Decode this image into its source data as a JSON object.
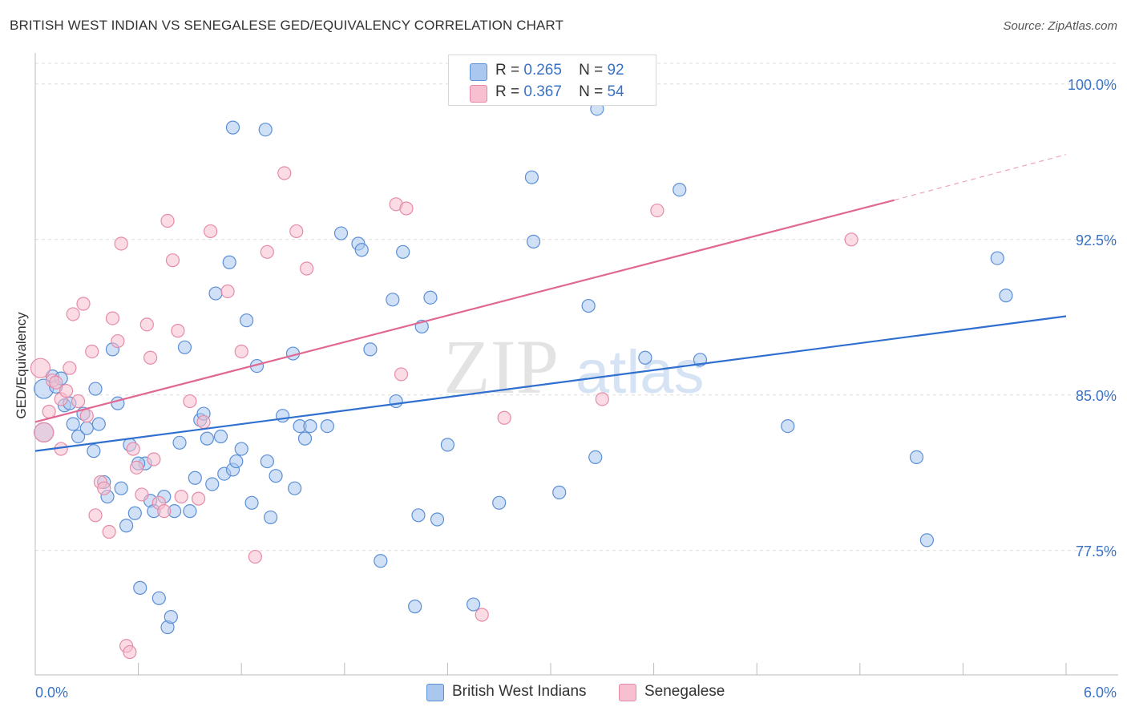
{
  "title": "BRITISH WEST INDIAN VS SENEGALESE GED/EQUIVALENCY CORRELATION CHART",
  "source": "Source: ZipAtlas.com",
  "watermark": {
    "zip": "ZIP",
    "atlas": "atlas"
  },
  "legend": {
    "rows": [
      {
        "r_label": "R =",
        "r_value": "0.265",
        "n_label": "N =",
        "n_value": "92"
      },
      {
        "r_label": "R =",
        "r_value": "0.367",
        "n_label": "N =",
        "n_value": "54"
      }
    ]
  },
  "bottom_legend": [
    "British West Indians",
    "Senegalese"
  ],
  "colors": {
    "blue_fill": "#a9c7ef",
    "blue_stroke": "#5b8fd6",
    "blue_line": "#2e6fd0",
    "pink_fill": "#f7bfd0",
    "pink_stroke": "#e58ba8",
    "pink_line": "#e06892",
    "axis_label": "#3a72c6",
    "grid": "#dddddd"
  },
  "chart_data": {
    "type": "scatter",
    "title": "BRITISH WEST INDIAN VS SENEGALESE GED/EQUIVALENCY CORRELATION CHART",
    "xlabel": "",
    "ylabel": "GED/Equivalency",
    "xlim": [
      0,
      6
    ],
    "ylim": [
      71.5,
      101.5
    ],
    "x_tick_labels": [
      "0.0%",
      "6.0%"
    ],
    "y_ticks": [
      77.5,
      85.0,
      92.5,
      100.0
    ],
    "y_tick_labels": [
      "77.5%",
      "85.0%",
      "92.5%",
      "100.0%"
    ],
    "grid": "horizontal dashed",
    "legend_position": "top-center",
    "series": [
      {
        "name": "British West Indians",
        "R": 0.265,
        "N": 92,
        "trend": {
          "x": [
            0,
            6
          ],
          "y": [
            82.3,
            88.8
          ]
        },
        "points": [
          [
            0.05,
            85.3
          ],
          [
            0.05,
            83.2
          ],
          [
            0.1,
            85.9
          ],
          [
            0.12,
            85.4
          ],
          [
            0.15,
            85.8
          ],
          [
            0.17,
            84.5
          ],
          [
            0.2,
            84.6
          ],
          [
            0.22,
            83.6
          ],
          [
            0.25,
            83.0
          ],
          [
            0.28,
            84.1
          ],
          [
            0.3,
            83.4
          ],
          [
            0.34,
            82.3
          ],
          [
            0.37,
            83.6
          ],
          [
            0.4,
            80.8
          ],
          [
            0.42,
            80.1
          ],
          [
            0.45,
            87.2
          ],
          [
            0.48,
            84.6
          ],
          [
            0.5,
            80.5
          ],
          [
            0.53,
            78.7
          ],
          [
            0.55,
            82.6
          ],
          [
            0.58,
            79.3
          ],
          [
            0.61,
            75.7
          ],
          [
            0.64,
            81.7
          ],
          [
            0.67,
            79.9
          ],
          [
            0.69,
            79.4
          ],
          [
            0.72,
            75.2
          ],
          [
            0.75,
            80.1
          ],
          [
            0.77,
            73.8
          ],
          [
            0.79,
            74.3
          ],
          [
            0.81,
            79.4
          ],
          [
            0.84,
            82.7
          ],
          [
            0.87,
            87.3
          ],
          [
            0.9,
            79.4
          ],
          [
            0.93,
            81.0
          ],
          [
            0.96,
            83.8
          ],
          [
            0.98,
            84.1
          ],
          [
            1.0,
            82.9
          ],
          [
            1.03,
            80.7
          ],
          [
            1.05,
            89.9
          ],
          [
            1.08,
            83.0
          ],
          [
            1.1,
            81.2
          ],
          [
            1.13,
            91.4
          ],
          [
            1.15,
            81.4
          ],
          [
            1.17,
            81.8
          ],
          [
            1.2,
            82.4
          ],
          [
            1.23,
            88.6
          ],
          [
            1.26,
            79.8
          ],
          [
            1.29,
            86.4
          ],
          [
            1.35,
            81.8
          ],
          [
            1.37,
            79.1
          ],
          [
            1.4,
            81.1
          ],
          [
            1.44,
            84.0
          ],
          [
            1.5,
            87.0
          ],
          [
            1.51,
            80.5
          ],
          [
            1.54,
            83.5
          ],
          [
            1.57,
            82.9
          ],
          [
            1.78,
            92.8
          ],
          [
            1.88,
            92.3
          ],
          [
            1.9,
            92.0
          ],
          [
            1.95,
            87.2
          ],
          [
            2.01,
            77.0
          ],
          [
            2.08,
            89.6
          ],
          [
            2.1,
            84.7
          ],
          [
            2.14,
            91.9
          ],
          [
            2.21,
            74.8
          ],
          [
            2.23,
            79.2
          ],
          [
            2.25,
            88.3
          ],
          [
            2.3,
            89.7
          ],
          [
            2.34,
            79.0
          ],
          [
            2.4,
            82.6
          ],
          [
            2.55,
            74.9
          ],
          [
            2.7,
            79.8
          ],
          [
            2.89,
            95.5
          ],
          [
            2.9,
            92.4
          ],
          [
            3.05,
            80.3
          ],
          [
            3.22,
            89.3
          ],
          [
            3.26,
            82.0
          ],
          [
            3.27,
            98.8
          ],
          [
            3.55,
            86.8
          ],
          [
            3.75,
            94.9
          ],
          [
            3.87,
            86.7
          ],
          [
            4.38,
            83.5
          ],
          [
            5.13,
            82.0
          ],
          [
            5.19,
            78.0
          ],
          [
            5.6,
            91.6
          ],
          [
            5.65,
            89.8
          ],
          [
            1.15,
            97.9
          ],
          [
            1.34,
            97.8
          ],
          [
            0.35,
            85.3
          ],
          [
            0.6,
            81.7
          ],
          [
            1.6,
            83.5
          ],
          [
            1.7,
            83.5
          ]
        ]
      },
      {
        "name": "Senegalese",
        "R": 0.367,
        "N": 54,
        "trend": {
          "x": [
            0,
            5
          ],
          "y": [
            83.7,
            94.4
          ]
        },
        "trend_dashed": {
          "x": [
            5,
            6
          ],
          "y": [
            94.4,
            96.6
          ]
        },
        "points": [
          [
            0.03,
            86.3
          ],
          [
            0.05,
            83.2
          ],
          [
            0.08,
            84.2
          ],
          [
            0.1,
            85.7
          ],
          [
            0.12,
            85.6
          ],
          [
            0.15,
            84.8
          ],
          [
            0.18,
            85.2
          ],
          [
            0.2,
            86.3
          ],
          [
            0.22,
            88.9
          ],
          [
            0.25,
            84.7
          ],
          [
            0.28,
            89.4
          ],
          [
            0.3,
            84.0
          ],
          [
            0.33,
            87.1
          ],
          [
            0.35,
            79.2
          ],
          [
            0.38,
            80.8
          ],
          [
            0.4,
            80.5
          ],
          [
            0.43,
            78.4
          ],
          [
            0.45,
            88.7
          ],
          [
            0.48,
            87.6
          ],
          [
            0.5,
            92.3
          ],
          [
            0.53,
            72.9
          ],
          [
            0.55,
            72.6
          ],
          [
            0.57,
            82.4
          ],
          [
            0.59,
            81.5
          ],
          [
            0.62,
            80.2
          ],
          [
            0.65,
            88.4
          ],
          [
            0.67,
            86.8
          ],
          [
            0.69,
            81.9
          ],
          [
            0.72,
            79.8
          ],
          [
            0.75,
            79.4
          ],
          [
            0.77,
            93.4
          ],
          [
            0.8,
            91.5
          ],
          [
            0.83,
            88.1
          ],
          [
            0.9,
            84.7
          ],
          [
            0.98,
            83.7
          ],
          [
            1.02,
            92.9
          ],
          [
            1.12,
            90.0
          ],
          [
            1.2,
            87.1
          ],
          [
            1.28,
            77.2
          ],
          [
            1.35,
            91.9
          ],
          [
            1.45,
            95.7
          ],
          [
            1.52,
            92.9
          ],
          [
            1.58,
            91.1
          ],
          [
            2.1,
            94.2
          ],
          [
            2.16,
            94.0
          ],
          [
            2.13,
            86.0
          ],
          [
            2.6,
            74.4
          ],
          [
            2.73,
            83.9
          ],
          [
            3.3,
            84.8
          ],
          [
            3.62,
            93.9
          ],
          [
            4.75,
            92.5
          ],
          [
            0.15,
            82.4
          ],
          [
            0.85,
            80.1
          ],
          [
            0.95,
            80.0
          ]
        ]
      }
    ]
  }
}
